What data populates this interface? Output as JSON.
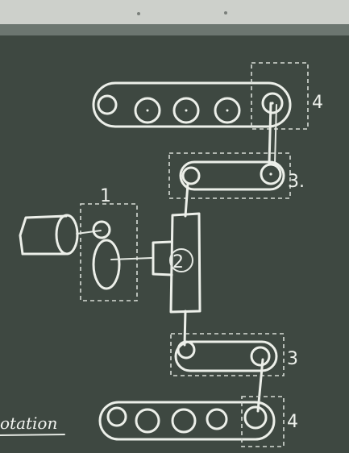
{
  "labels": {
    "one": "1",
    "two": "2",
    "three_top": "3.",
    "three_bottom": "3",
    "four_top": "4",
    "four_bottom": "4",
    "word": "otation"
  }
}
